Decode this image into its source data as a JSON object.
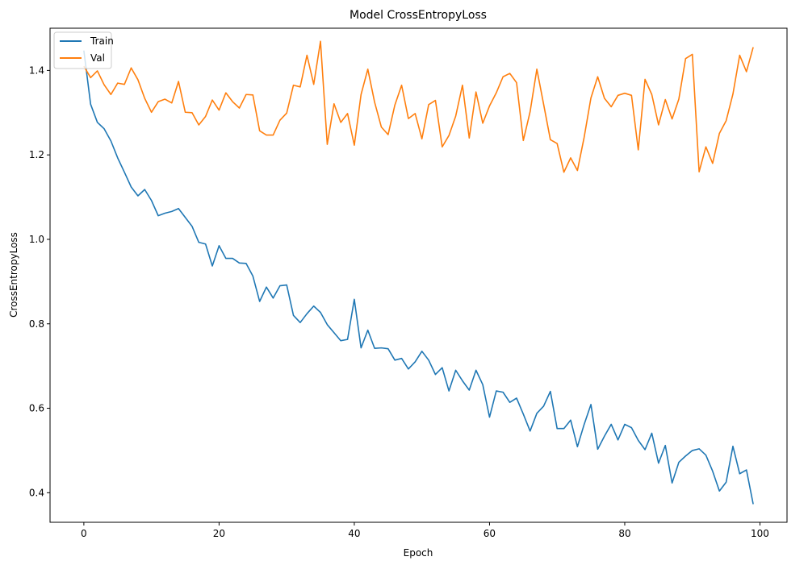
{
  "chart_data": {
    "type": "line",
    "title": "Model CrossEntropyLoss",
    "xlabel": "Epoch",
    "ylabel": "CrossEntropyLoss",
    "xlim": [
      -5,
      104
    ],
    "ylim": [
      0.33,
      1.5
    ],
    "xticks": [
      0,
      20,
      40,
      60,
      80,
      100
    ],
    "yticks": [
      0.4,
      0.6,
      0.8,
      1.0,
      1.2,
      1.4
    ],
    "xtick_labels": [
      "0",
      "20",
      "40",
      "60",
      "80",
      "100"
    ],
    "ytick_labels": [
      "0.4",
      "0.6",
      "0.8",
      "1.0",
      "1.2",
      "1.4"
    ],
    "grid": false,
    "legend_position": "top-left",
    "series": [
      {
        "name": "Train",
        "color": "#1f77b4",
        "x": [
          0,
          1,
          2,
          3,
          4,
          5,
          6,
          7,
          8,
          9,
          10,
          11,
          12,
          13,
          14,
          15,
          16,
          17,
          18,
          19,
          20,
          21,
          22,
          23,
          24,
          25,
          26,
          27,
          28,
          29,
          30,
          31,
          32,
          33,
          34,
          35,
          36,
          37,
          38,
          39,
          40,
          41,
          42,
          43,
          44,
          45,
          46,
          47,
          48,
          49,
          50,
          51,
          52,
          53,
          54,
          55,
          56,
          57,
          58,
          59,
          60,
          61,
          62,
          63,
          64,
          65,
          66,
          67,
          68,
          69,
          70,
          71,
          72,
          73,
          74,
          75,
          76,
          77,
          78,
          79,
          80,
          81,
          82,
          83,
          84,
          85,
          86,
          87,
          88,
          89,
          90,
          91,
          92,
          93,
          94,
          95,
          96,
          97,
          98,
          99
        ],
        "y": [
          1.447,
          1.32,
          1.277,
          1.262,
          1.233,
          1.193,
          1.159,
          1.124,
          1.103,
          1.118,
          1.092,
          1.056,
          1.062,
          1.066,
          1.073,
          1.052,
          1.031,
          0.993,
          0.989,
          0.937,
          0.985,
          0.955,
          0.955,
          0.944,
          0.943,
          0.913,
          0.853,
          0.887,
          0.861,
          0.89,
          0.892,
          0.82,
          0.803,
          0.824,
          0.842,
          0.827,
          0.798,
          0.779,
          0.76,
          0.763,
          0.858,
          0.743,
          0.785,
          0.742,
          0.743,
          0.741,
          0.714,
          0.718,
          0.693,
          0.71,
          0.735,
          0.714,
          0.68,
          0.696,
          0.641,
          0.69,
          0.665,
          0.643,
          0.69,
          0.656,
          0.579,
          0.641,
          0.638,
          0.614,
          0.624,
          0.586,
          0.546,
          0.588,
          0.605,
          0.64,
          0.552,
          0.552,
          0.572,
          0.509,
          0.562,
          0.609,
          0.503,
          0.534,
          0.562,
          0.525,
          0.562,
          0.554,
          0.524,
          0.502,
          0.541,
          0.47,
          0.512,
          0.423,
          0.472,
          0.487,
          0.5,
          0.504,
          0.489,
          0.451,
          0.404,
          0.425,
          0.51,
          0.445,
          0.454,
          0.373
        ]
      },
      {
        "name": "Val",
        "color": "#ff7f0e",
        "x": [
          0,
          1,
          2,
          3,
          4,
          5,
          6,
          7,
          8,
          9,
          10,
          11,
          12,
          13,
          14,
          15,
          16,
          17,
          18,
          19,
          20,
          21,
          22,
          23,
          24,
          25,
          26,
          27,
          28,
          29,
          30,
          31,
          32,
          33,
          34,
          35,
          36,
          37,
          38,
          39,
          40,
          41,
          42,
          43,
          44,
          45,
          46,
          47,
          48,
          49,
          50,
          51,
          52,
          53,
          54,
          55,
          56,
          57,
          58,
          59,
          60,
          61,
          62,
          63,
          64,
          65,
          66,
          67,
          68,
          69,
          70,
          71,
          72,
          73,
          74,
          75,
          76,
          77,
          78,
          79,
          80,
          81,
          82,
          83,
          84,
          85,
          86,
          87,
          88,
          89,
          90,
          91,
          92,
          93,
          94,
          95,
          96,
          97,
          98,
          99
        ],
        "y": [
          1.41,
          1.383,
          1.399,
          1.366,
          1.343,
          1.37,
          1.367,
          1.406,
          1.378,
          1.334,
          1.301,
          1.326,
          1.332,
          1.323,
          1.374,
          1.301,
          1.3,
          1.271,
          1.291,
          1.33,
          1.306,
          1.347,
          1.326,
          1.311,
          1.343,
          1.342,
          1.257,
          1.247,
          1.247,
          1.282,
          1.299,
          1.365,
          1.361,
          1.436,
          1.367,
          1.469,
          1.225,
          1.321,
          1.277,
          1.298,
          1.223,
          1.343,
          1.403,
          1.325,
          1.266,
          1.248,
          1.318,
          1.365,
          1.286,
          1.298,
          1.238,
          1.319,
          1.329,
          1.219,
          1.246,
          1.292,
          1.365,
          1.24,
          1.349,
          1.275,
          1.316,
          1.347,
          1.385,
          1.393,
          1.371,
          1.234,
          1.302,
          1.403,
          1.32,
          1.236,
          1.227,
          1.159,
          1.193,
          1.163,
          1.242,
          1.335,
          1.385,
          1.334,
          1.314,
          1.341,
          1.346,
          1.341,
          1.212,
          1.379,
          1.343,
          1.271,
          1.331,
          1.285,
          1.332,
          1.428,
          1.438,
          1.16,
          1.219,
          1.18,
          1.251,
          1.281,
          1.344,
          1.436,
          1.397,
          1.455
        ]
      }
    ]
  }
}
